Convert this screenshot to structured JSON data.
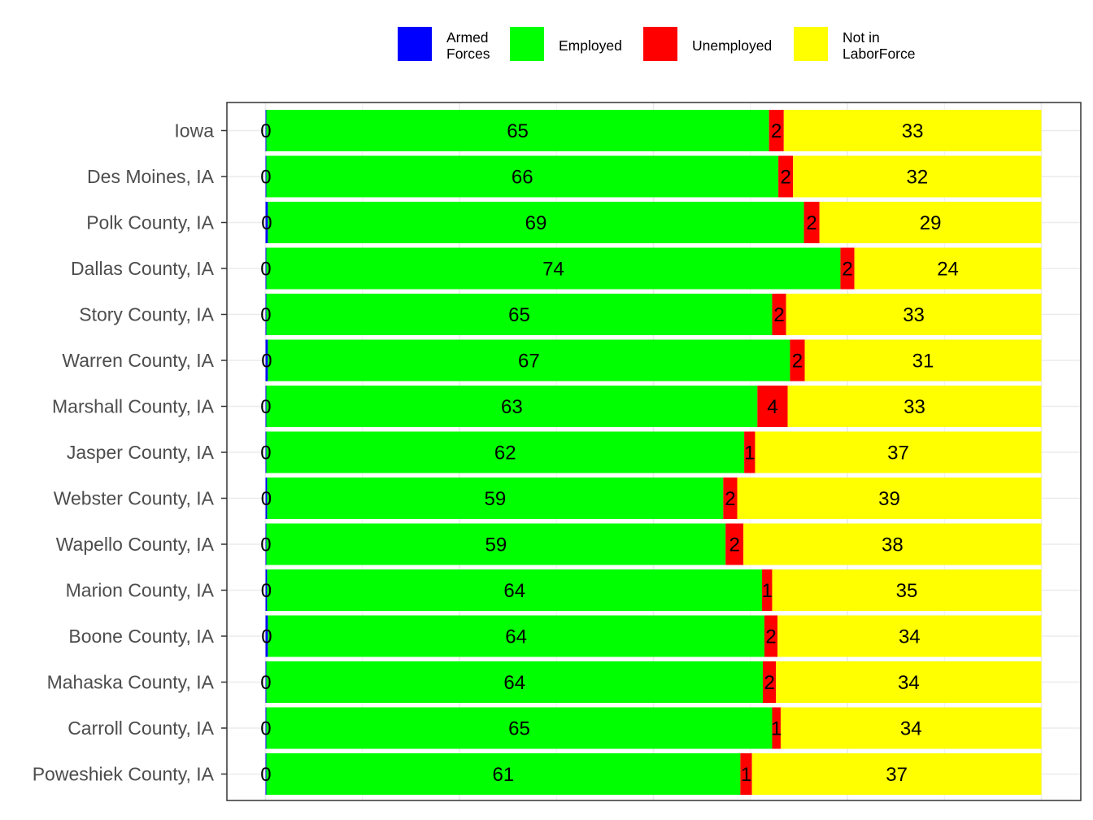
{
  "chart_data": {
    "type": "bar",
    "orientation": "horizontal",
    "stacked": true,
    "percent_scale": true,
    "xlim": [
      0,
      100
    ],
    "grid": true,
    "legend_position": "top",
    "categories": [
      "Iowa",
      "Des Moines, IA",
      "Polk County, IA",
      "Dallas County, IA",
      "Story County, IA",
      "Warren County, IA",
      "Marshall County, IA",
      "Jasper County, IA",
      "Webster County, IA",
      "Wapello County, IA",
      "Marion County, IA",
      "Boone County, IA",
      "Mahaska County, IA",
      "Carroll County, IA",
      "Poweshiek County, IA"
    ],
    "series": [
      {
        "name": "Armed Forces",
        "legend_lines": [
          "Armed",
          "Forces"
        ],
        "color": "#0000ff",
        "values": [
          0.1,
          0.1,
          0.3,
          0.1,
          0.1,
          0.3,
          0.1,
          0.1,
          0.2,
          0.1,
          0.2,
          0.3,
          0.1,
          0.1,
          0.1
        ],
        "labels": [
          "0",
          "0",
          "0",
          "0",
          "0",
          "0",
          "0",
          "0",
          "0",
          "0",
          "0",
          "0",
          "0",
          "0",
          "0"
        ]
      },
      {
        "name": "Employed",
        "legend_lines": [
          "Employed"
        ],
        "color": "#00ff00",
        "values": [
          64.8,
          66.0,
          69.1,
          74.0,
          65.2,
          67.3,
          63.3,
          61.6,
          58.8,
          59.2,
          63.8,
          64.0,
          64.0,
          65.2,
          61.1
        ],
        "labels": [
          "65",
          "66",
          "69",
          "74",
          "65",
          "67",
          "63",
          "62",
          "59",
          "59",
          "64",
          "64",
          "64",
          "65",
          "61"
        ]
      },
      {
        "name": "Unemployed",
        "legend_lines": [
          "Unemployed"
        ],
        "color": "#ff0000",
        "values": [
          1.9,
          1.9,
          2.0,
          1.8,
          1.8,
          1.9,
          3.9,
          1.4,
          1.8,
          2.3,
          1.3,
          1.7,
          1.7,
          1.1,
          1.5
        ],
        "labels": [
          "2",
          "2",
          "2",
          "2",
          "2",
          "2",
          "4",
          "1",
          "2",
          "2",
          "1",
          "2",
          "2",
          "1",
          "1"
        ]
      },
      {
        "name": "Not in LaborForce",
        "legend_lines": [
          "Not in",
          "LaborForce"
        ],
        "color": "#ffff00",
        "values": [
          33.2,
          32.0,
          28.6,
          24.1,
          32.9,
          30.5,
          32.7,
          36.9,
          39.2,
          38.4,
          34.7,
          34.0,
          34.2,
          33.6,
          37.3
        ],
        "labels": [
          "33",
          "32",
          "29",
          "24",
          "33",
          "31",
          "33",
          "37",
          "39",
          "38",
          "35",
          "34",
          "34",
          "34",
          "37"
        ]
      }
    ]
  }
}
